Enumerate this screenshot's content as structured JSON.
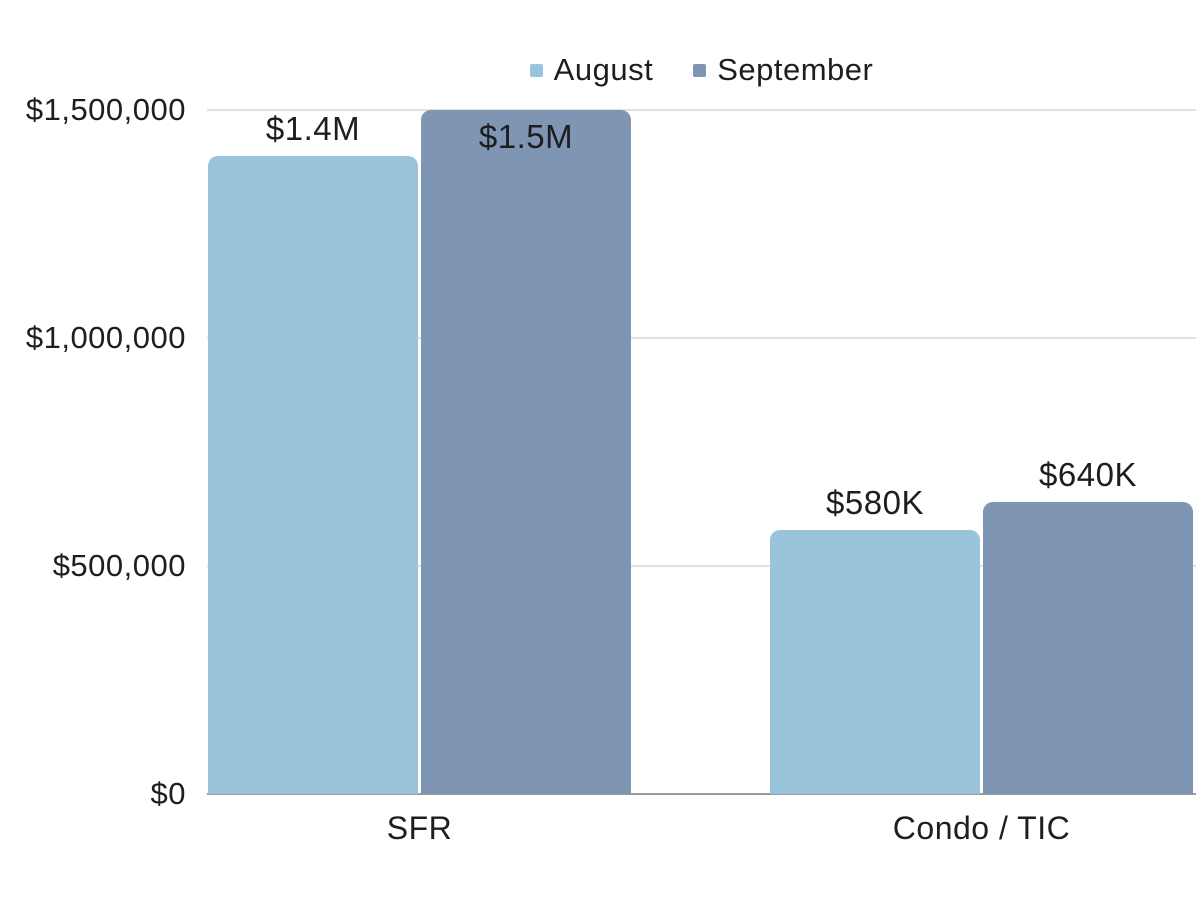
{
  "chart_data": {
    "type": "bar",
    "title": "",
    "xlabel": "",
    "ylabel": "",
    "categories": [
      "SFR",
      "Condo / TIC"
    ],
    "series": [
      {
        "name": "August",
        "color": "#9AC3DC",
        "values": [
          1400000,
          580000
        ],
        "data_labels": [
          "$1.4M",
          "$580K"
        ]
      },
      {
        "name": "September",
        "color": "#7E95B3",
        "values": [
          1500000,
          640000
        ],
        "data_labels": [
          "$1.5M",
          "$640K"
        ]
      }
    ],
    "y_ticks": [
      {
        "value": 0,
        "label": "$0"
      },
      {
        "value": 500000,
        "label": "$500,000"
      },
      {
        "value": 1000000,
        "label": "$1,000,000"
      },
      {
        "value": 1500000,
        "label": "$1,500,000"
      }
    ],
    "ylim": [
      0,
      1500000
    ],
    "grid": "horizontal",
    "legend_position": "top-center"
  },
  "colors": {
    "august": "#9AC3DC",
    "september": "#7E95B3",
    "gridline": "#E0E0E0",
    "baseline": "#9B9B9B",
    "text": "#1E1E1E",
    "background": "#FFFFFF"
  }
}
